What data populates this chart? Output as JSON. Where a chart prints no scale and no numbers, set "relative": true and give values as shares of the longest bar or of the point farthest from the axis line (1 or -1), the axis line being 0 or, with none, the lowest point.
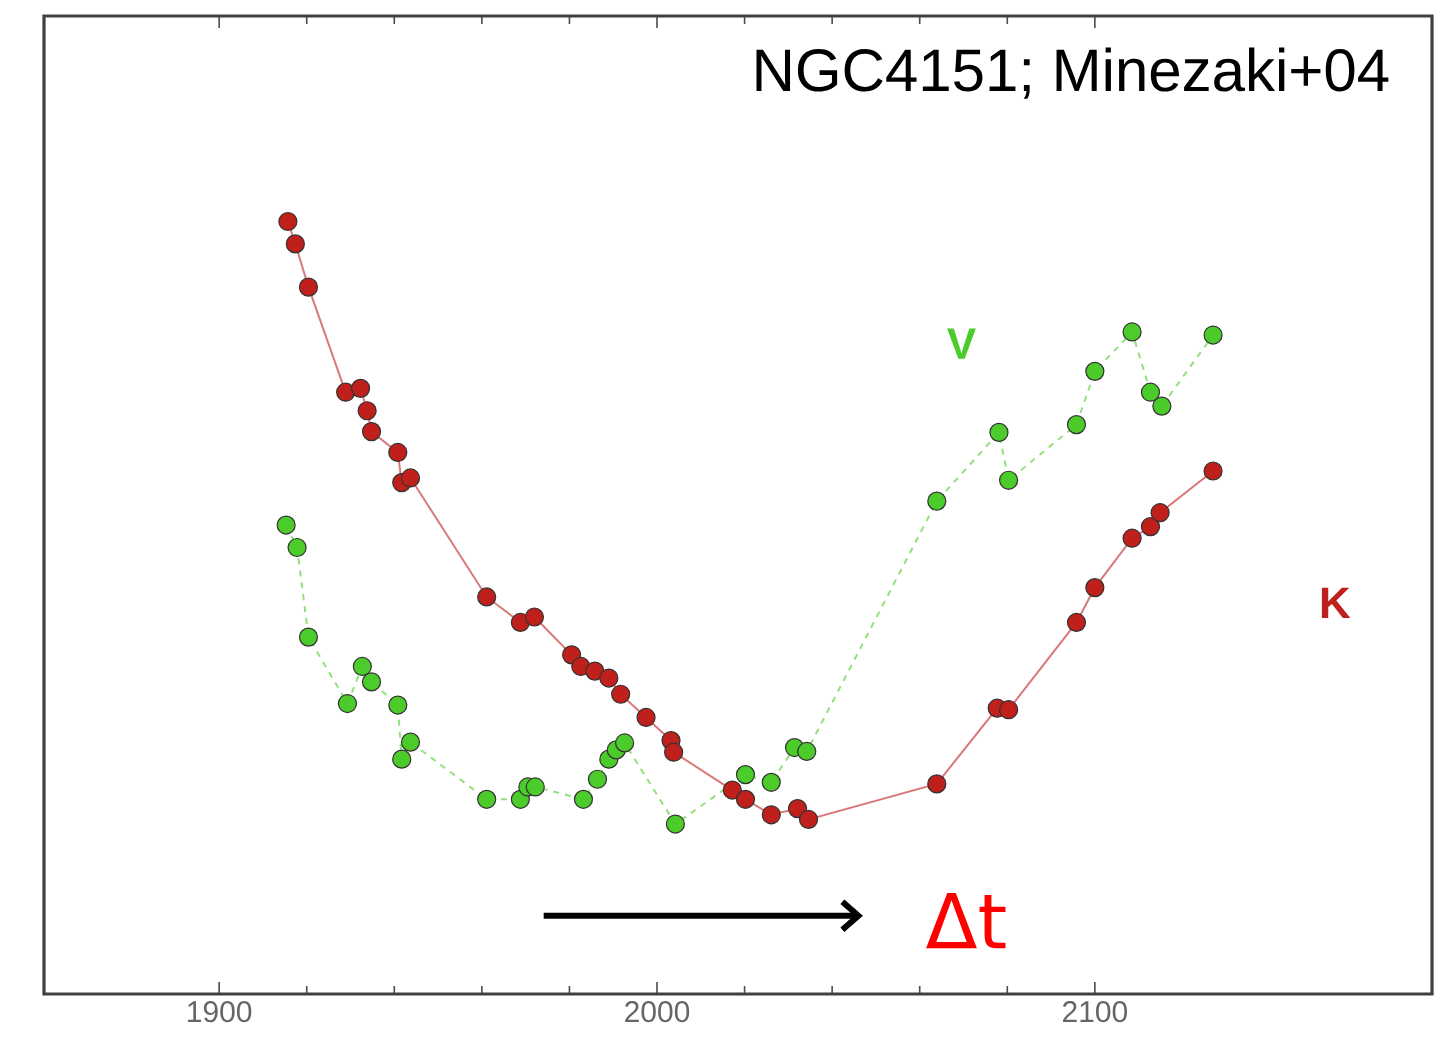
{
  "chart_data": {
    "type": "line",
    "relative": true,
    "title": "NGC4151; Minezaki+04",
    "annotations": [
      "Δt"
    ],
    "xlim": [
      1860,
      2177
    ],
    "xticks": [
      1900,
      2000,
      2100
    ],
    "tick_labels": "x",
    "marker": "circle",
    "grid": false,
    "legend": false,
    "series": [
      {
        "name": "V",
        "color": "#4ccc2a",
        "line_style": "dashed",
        "x": [
          1915.3,
          1917.8,
          1920.4,
          1929.3,
          1932.7,
          1934.8,
          1940.8,
          1941.7,
          1943.7,
          1961.1,
          1968.8,
          1970.5,
          1972.2,
          1983.2,
          1986.4,
          1989,
          1990.7,
          1992.6,
          2004.2,
          2020.2,
          2026.1,
          2031.4,
          2034.2,
          2063.9,
          2078.1,
          2080.3,
          2095.8,
          2100,
          2108.5,
          2112.7,
          2115.3,
          2127
        ],
        "values": [
          0.607,
          0.578,
          0.462,
          0.376,
          0.424,
          0.404,
          0.374,
          0.304,
          0.326,
          0.252,
          0.252,
          0.268,
          0.268,
          0.252,
          0.278,
          0.304,
          0.316,
          0.325,
          0.22,
          0.284,
          0.274,
          0.319,
          0.314,
          0.638,
          0.727,
          0.665,
          0.737,
          0.806,
          0.857,
          0.779,
          0.761,
          0.853
        ]
      },
      {
        "name": "K",
        "color": "#c0201c",
        "line_style": "solid",
        "x": [
          1915.7,
          1917.4,
          1920.4,
          1928.9,
          1932.3,
          1933.8,
          1934.8,
          1940.8,
          1941.7,
          1943.7,
          1961.1,
          1968.8,
          1972,
          1980.5,
          1982.6,
          1985.8,
          1989,
          1991.7,
          1997.5,
          2003.2,
          2003.8,
          2017.2,
          2020.2,
          2026.1,
          2032.1,
          2034.6,
          2063.9,
          2077.7,
          2080.3,
          2095.8,
          2100,
          2108.5,
          2112.7,
          2114.9,
          2127
        ],
        "values": [
          1.0,
          0.971,
          0.915,
          0.779,
          0.784,
          0.755,
          0.728,
          0.701,
          0.662,
          0.668,
          0.514,
          0.481,
          0.488,
          0.439,
          0.424,
          0.418,
          0.409,
          0.388,
          0.358,
          0.328,
          0.313,
          0.264,
          0.252,
          0.232,
          0.24,
          0.226,
          0.272,
          0.37,
          0.368,
          0.481,
          0.526,
          0.59,
          0.605,
          0.623,
          0.677
        ]
      }
    ]
  }
}
